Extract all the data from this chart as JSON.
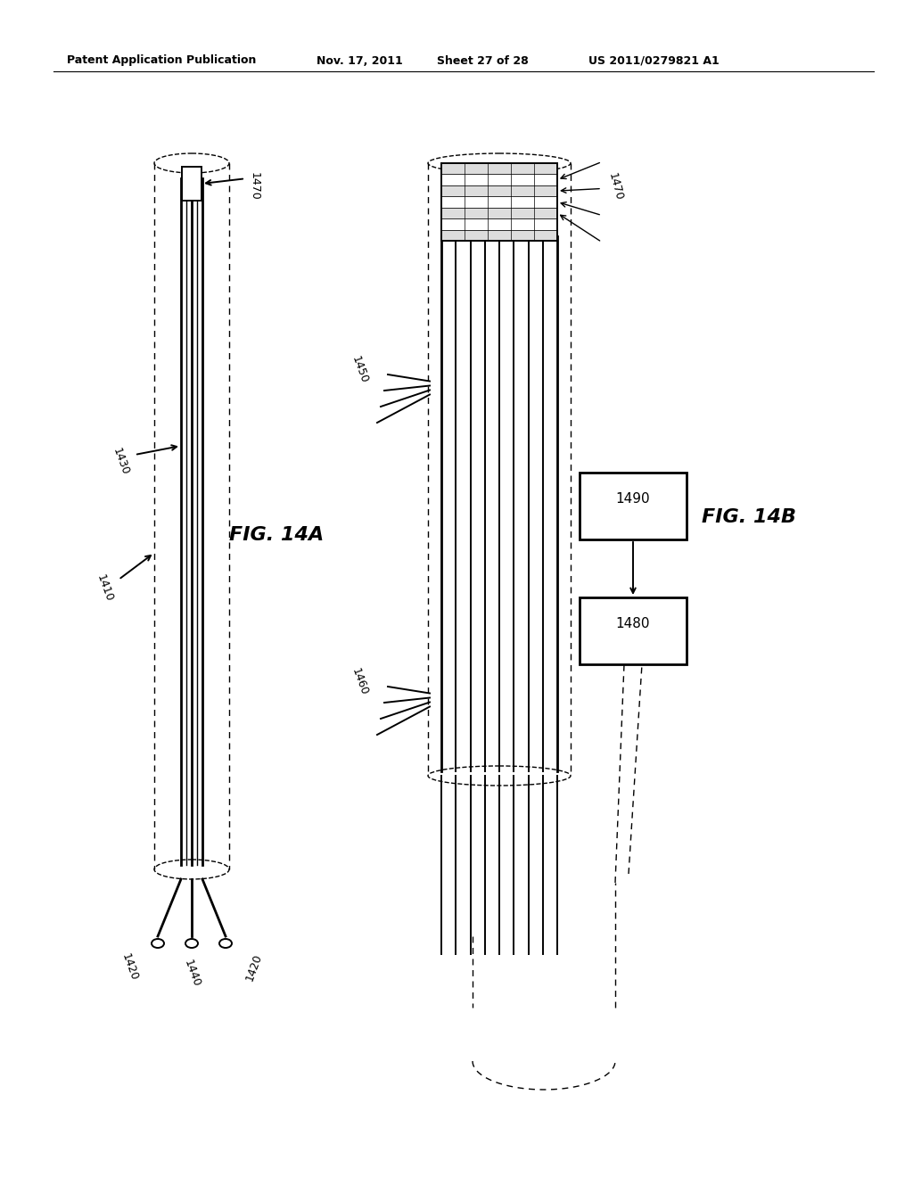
{
  "bg_color": "#ffffff",
  "header_text": "Patent Application Publication",
  "header_date": "Nov. 17, 2011",
  "header_sheet": "Sheet 27 of 28",
  "header_patent": "US 2011/0279821 A1",
  "fig_label_A": "FIG. 14A",
  "fig_label_B": "FIG. 14B"
}
